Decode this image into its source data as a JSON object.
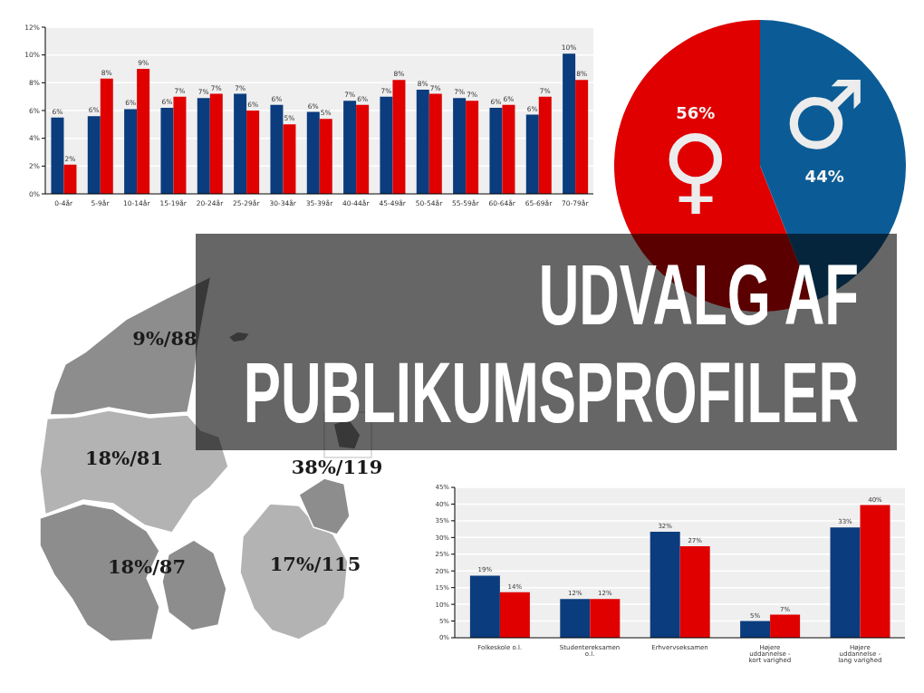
{
  "chart_data": [
    {
      "type": "bar",
      "categories": [
        "0-4år",
        "5-9år",
        "10-14år",
        "15-19år",
        "20-24år",
        "25-29år",
        "30-34år",
        "35-39år",
        "40-44år",
        "45-49år",
        "50-54år",
        "55-59år",
        "60-64år",
        "65-69år",
        "70-79år"
      ],
      "series": [
        {
          "color": "#0b3c7d",
          "values": [
            5.5,
            5.6,
            6.1,
            6.2,
            6.9,
            7.2,
            6.4,
            5.9,
            6.7,
            7.0,
            7.5,
            6.9,
            6.2,
            5.7,
            10.1
          ],
          "value_labels": [
            "6%",
            "6%",
            "6%",
            "6%",
            "7%",
            "7%",
            "6%",
            "6%",
            "7%",
            "7%",
            "8%",
            "7%",
            "6%",
            "6%",
            "10%"
          ]
        },
        {
          "color": "#e00000",
          "values": [
            2.1,
            8.3,
            9.0,
            7.0,
            7.2,
            6.0,
            5.0,
            5.4,
            6.4,
            8.2,
            7.2,
            6.7,
            6.4,
            7.0,
            8.2
          ],
          "value_labels": [
            "2%",
            "8%",
            "9%",
            "7%",
            "7%",
            "6%",
            "5%",
            "5%",
            "6%",
            "8%",
            "7%",
            "7%",
            "6%",
            "7%",
            "8%"
          ]
        }
      ],
      "ylim": [
        0,
        12
      ],
      "yticks": [
        {
          "value": 0,
          "label": "0%"
        },
        {
          "value": 2,
          "label": "2%"
        },
        {
          "value": 4,
          "label": "4%"
        },
        {
          "value": 6,
          "label": "6%"
        },
        {
          "value": 8,
          "label": "8%"
        },
        {
          "value": 10,
          "label": "10%"
        },
        {
          "value": 12,
          "label": "12%"
        }
      ],
      "grid": "y"
    },
    {
      "type": "pie",
      "categories": [
        "♀",
        "♂"
      ],
      "values": [
        56,
        44
      ],
      "colors": [
        "#e00000",
        "#0b5c96"
      ],
      "value_labels": [
        "56%",
        "44%"
      ]
    },
    {
      "type": "other",
      "title": "UDVALG AF PUBLIKUMSPROFILER"
    },
    {
      "type": "other",
      "annotations": [
        "9%/88",
        "18%/81",
        "38%/119",
        "18%/87",
        "17%/115"
      ]
    },
    {
      "type": "bar",
      "categories": [
        "Folkeskole o.l.",
        "Studentereksamen o.l.",
        "Erhvervseksamen",
        "Højere uddannelse - kort varighed",
        "Højere uddannelse - lang varighed"
      ],
      "series": [
        {
          "color": "#0b3c7d",
          "values": [
            18.6,
            11.6,
            31.7,
            5.0,
            33.0
          ],
          "value_labels": [
            "19%",
            "12%",
            "32%",
            "5%",
            "33%"
          ]
        },
        {
          "color": "#e00000",
          "values": [
            13.6,
            11.6,
            27.4,
            6.9,
            39.7
          ],
          "value_labels": [
            "14%",
            "12%",
            "27%",
            "7%",
            "40%"
          ]
        }
      ],
      "ylim": [
        0,
        45
      ],
      "yticks": [
        {
          "value": 0,
          "label": "0%"
        },
        {
          "value": 5,
          "label": "5%"
        },
        {
          "value": 10,
          "label": "10%"
        },
        {
          "value": 15,
          "label": "15%"
        },
        {
          "value": 20,
          "label": "20%"
        },
        {
          "value": 25,
          "label": "25%"
        },
        {
          "value": 30,
          "label": "30%"
        },
        {
          "value": 35,
          "label": "35%"
        },
        {
          "value": 40,
          "label": "40%"
        },
        {
          "value": 45,
          "label": "45%"
        }
      ],
      "grid": "y"
    }
  ]
}
